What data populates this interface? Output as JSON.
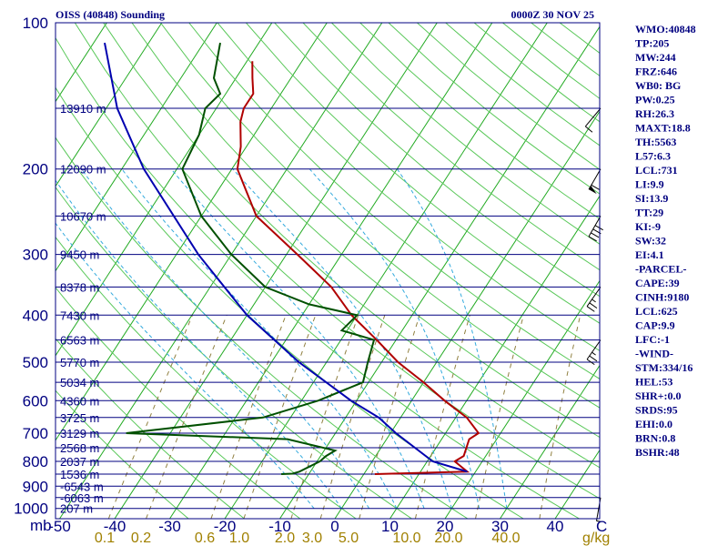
{
  "header": {
    "title": "OISS (40848) Sounding",
    "datetime": "0000Z 30 NOV 25"
  },
  "chart_data": {
    "type": "skew-t log-p sounding",
    "pressure_axis": {
      "unit": "mb",
      "range": [
        1050,
        100
      ],
      "ticks": [
        100,
        200,
        300,
        400,
        500,
        600,
        700,
        800,
        900,
        1000
      ]
    },
    "temperature_axis": {
      "unit": "C",
      "range": [
        -50,
        50
      ],
      "ticks": [
        -50,
        -40,
        -30,
        -20,
        -10,
        0,
        10,
        20,
        30,
        40
      ],
      "tick_labels": [
        "-50",
        "-40",
        "-30",
        "-20",
        "-10",
        "0",
        "10",
        "20",
        "30",
        "40"
      ],
      "unit_label": "C"
    },
    "mixing_ratio_axis": {
      "unit": "g/kg",
      "values": [
        0.1,
        0.2,
        0.6,
        1.0,
        2.0,
        3.0,
        5.0,
        10.0,
        20.0,
        40.0
      ],
      "labels": [
        "0.1",
        "0.2",
        "0.6",
        "1.0",
        "2.0",
        "3.0",
        "5.0",
        "10.0",
        "20.0",
        "40.0"
      ]
    },
    "height_levels": [
      {
        "p": 150,
        "label": "13910 m"
      },
      {
        "p": 200,
        "label": "12090 m"
      },
      {
        "p": 250,
        "label": "10670 m"
      },
      {
        "p": 300,
        "label": "9450 m"
      },
      {
        "p": 350,
        "label": "8378 m"
      },
      {
        "p": 400,
        "label": "7430 m"
      },
      {
        "p": 450,
        "label": "6563 m"
      },
      {
        "p": 500,
        "label": "5770 m"
      },
      {
        "p": 550,
        "label": "5034 m"
      },
      {
        "p": 600,
        "label": "4360 m"
      },
      {
        "p": 650,
        "label": "3725 m"
      },
      {
        "p": 700,
        "label": "3129 m"
      },
      {
        "p": 750,
        "label": "2568 m"
      },
      {
        "p": 800,
        "label": "2037 m"
      },
      {
        "p": 850,
        "label": "1536 m"
      },
      {
        "p": 900,
        "label": "-6543 m"
      },
      {
        "p": 950,
        "label": "-6063 m"
      },
      {
        "p": 1000,
        "label": "207 m"
      }
    ],
    "series": [
      {
        "name": "Temperature",
        "color": "#b00000",
        "points": [
          [
            850,
            2
          ],
          [
            848,
            5
          ],
          [
            840,
            18.5
          ],
          [
            800,
            15
          ],
          [
            780,
            16
          ],
          [
            720,
            15
          ],
          [
            700,
            16
          ],
          [
            650,
            12
          ],
          [
            600,
            6
          ],
          [
            550,
            0
          ],
          [
            500,
            -7
          ],
          [
            450,
            -13.5
          ],
          [
            400,
            -21
          ],
          [
            350,
            -28
          ],
          [
            300,
            -38
          ],
          [
            250,
            -50
          ],
          [
            200,
            -59
          ],
          [
            180,
            -61
          ],
          [
            160,
            -64
          ],
          [
            150,
            -65
          ],
          [
            140,
            -65
          ],
          [
            130,
            -67
          ],
          [
            120,
            -69
          ]
        ]
      },
      {
        "name": "Dewpoint",
        "color": "#005000",
        "points": [
          [
            850,
            -15
          ],
          [
            848,
            -13
          ],
          [
            840,
            -12
          ],
          [
            800,
            -9.5
          ],
          [
            780,
            -9
          ],
          [
            760,
            -8
          ],
          [
            720,
            -18
          ],
          [
            700,
            -48
          ],
          [
            650,
            -25
          ],
          [
            600,
            -17
          ],
          [
            550,
            -11
          ],
          [
            500,
            -12.5
          ],
          [
            450,
            -14
          ],
          [
            430,
            -21
          ],
          [
            400,
            -20
          ],
          [
            380,
            -30
          ],
          [
            350,
            -40
          ],
          [
            300,
            -50
          ],
          [
            250,
            -60
          ],
          [
            200,
            -69
          ],
          [
            170,
            -70
          ],
          [
            150,
            -72
          ],
          [
            140,
            -71
          ],
          [
            130,
            -74
          ],
          [
            110,
            -77
          ]
        ]
      },
      {
        "name": "Parcel",
        "color": "#0000b0",
        "points": [
          [
            840,
            18.5
          ],
          [
            800,
            11
          ],
          [
            700,
            1
          ],
          [
            650,
            -4
          ],
          [
            600,
            -11
          ],
          [
            500,
            -25
          ],
          [
            400,
            -40
          ],
          [
            300,
            -56
          ],
          [
            200,
            -76
          ],
          [
            150,
            -88
          ],
          [
            110,
            -98
          ]
        ]
      }
    ],
    "wind_barbs": [
      {
        "p": 150,
        "dir": 40,
        "kt": 10
      },
      {
        "p": 200,
        "dir": 30,
        "kt": 60
      },
      {
        "p": 250,
        "dir": 30,
        "kt": 40
      },
      {
        "p": 350,
        "dir": 35,
        "kt": 25
      },
      {
        "p": 450,
        "dir": 35,
        "kt": 25
      },
      {
        "p": 950,
        "dir": 10,
        "kt": 5
      }
    ]
  },
  "indices": [
    "WMO:40848",
    "TP:205",
    "MW:244",
    "FRZ:646",
    "WB0: BG",
    "PW:0.25",
    "RH:26.3",
    "MAXT:18.8",
    "TH:5563",
    "L57:6.3",
    "LCL:731",
    "LI:9.9",
    "SI:13.9",
    "TT:29",
    "KI:-9",
    "SW:32",
    "EI:4.1",
    "-PARCEL-",
    "CAPE:39",
    "CINH:9180",
    "LCL:625",
    "CAP:9.9",
    "LFC:-1",
    "-WIND-",
    "STM:334/16",
    "HEL:53",
    "SHR+:0.0",
    "SRDS:95",
    "EHI:0.0",
    "BRN:0.8",
    "BSHR:48"
  ]
}
